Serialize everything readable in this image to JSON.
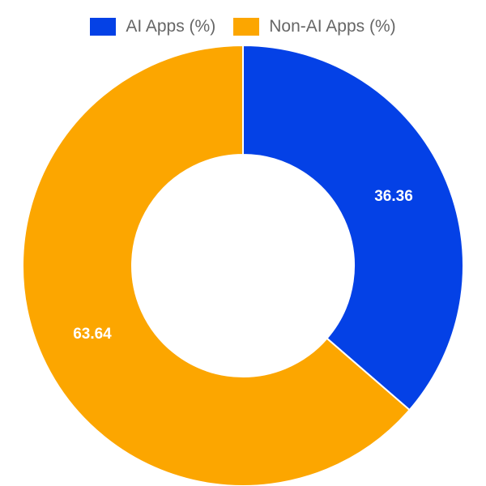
{
  "chart_data": {
    "type": "pie",
    "donut": true,
    "legend_position": "top",
    "series": [
      {
        "name": "AI Apps (%)",
        "value": 36.36,
        "label": "36.36",
        "color": "#0441e6"
      },
      {
        "name": "Non-AI Apps (%)",
        "value": 63.64,
        "label": "63.64",
        "color": "#fca600"
      }
    ]
  }
}
